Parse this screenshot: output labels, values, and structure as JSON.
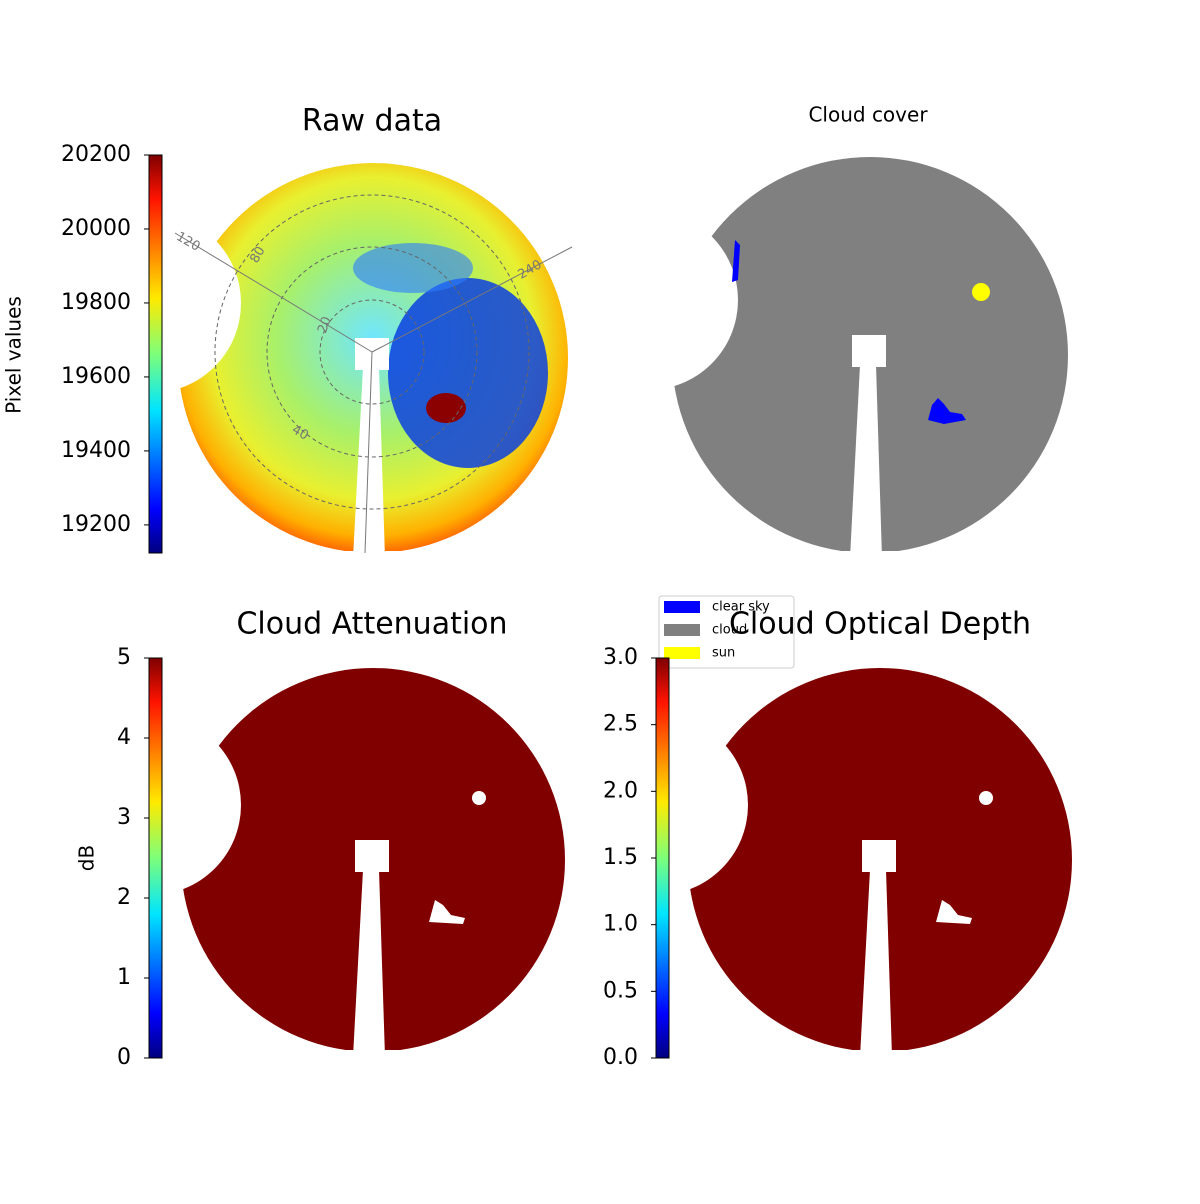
{
  "chart_data": [
    {
      "type": "image",
      "title": "Raw data",
      "colorbar": {
        "label": "Pixel values",
        "lim": [
          19124,
          20200
        ],
        "ticks": [
          19200,
          19400,
          19600,
          19800,
          20000,
          20200
        ]
      },
      "polar_labels": [
        "120",
        "80",
        "20",
        "40",
        "240"
      ]
    },
    {
      "type": "image",
      "title": "Cloud cover",
      "legend": {
        "series": [
          {
            "name": "clear sky",
            "color": "#0000ff"
          },
          {
            "name": "cloud",
            "color": "#808080"
          },
          {
            "name": "sun",
            "color": "#ffff00"
          }
        ]
      }
    },
    {
      "type": "image",
      "title": "Cloud Attenuation",
      "colorbar": {
        "label": "dB",
        "lim": [
          0,
          5
        ],
        "ticks": [
          0,
          1,
          2,
          3,
          4,
          5
        ]
      }
    },
    {
      "type": "image",
      "title": "Cloud Optical Depth",
      "colorbar": {
        "lim": [
          0,
          3
        ],
        "ticks": [
          {
            "value": 0,
            "label": "0.0"
          },
          {
            "value": 0.5,
            "label": "0.5"
          },
          {
            "value": 1,
            "label": "1.0"
          },
          {
            "value": 1.5,
            "label": "1.5"
          },
          {
            "value": 2,
            "label": "2.0"
          },
          {
            "value": 2.5,
            "label": "2.5"
          },
          {
            "value": 3,
            "label": "3.0"
          }
        ]
      }
    }
  ]
}
